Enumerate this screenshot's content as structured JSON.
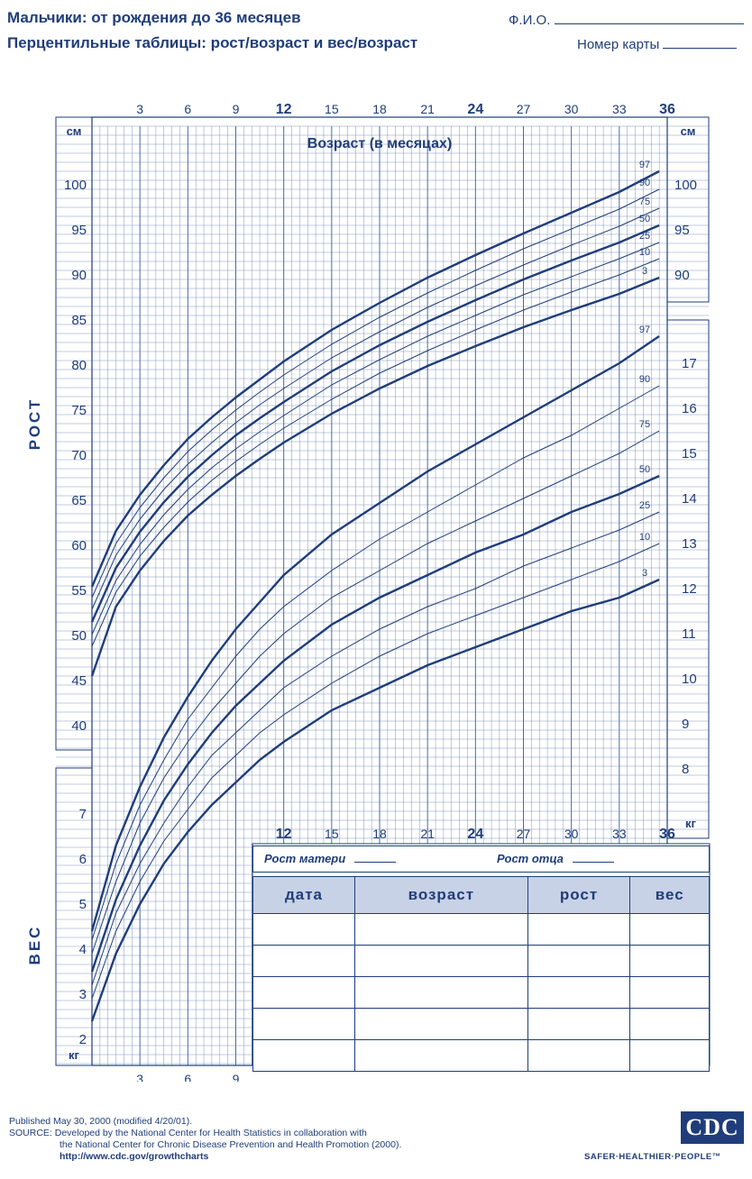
{
  "header": {
    "title_line1": "Мальчики: от рождения до 36 месяцев",
    "title_line2": "Перцентильные таблицы: рост/возраст и вес/возраст",
    "name_label": "Ф.И.О.",
    "card_label": "Номер карты"
  },
  "record_table": {
    "mother_height_label": "Рост матери",
    "father_height_label": "Рост отца",
    "columns": [
      "дата",
      "возраст",
      "рост",
      "вес"
    ],
    "row_count": 5
  },
  "footer": {
    "line1": "Published May 30, 2000 (modified 4/20/01).",
    "line2": "SOURCE: Developed by the National Center for Health Statistics in collaboration with",
    "line3": "the National Center for Chronic Disease Prevention and Health Promotion (2000).",
    "url": "http://www.cdc.gov/growthcharts",
    "logo_text": "CDC",
    "tagline": "SAFER·HEALTHIER·PEOPLE™"
  },
  "colors": {
    "ink": "#1f3d7a",
    "grid": "#4a6aa8",
    "table_head": "#c8d2e6"
  },
  "chart_data": [
    {
      "type": "line",
      "title": "Возраст (в месяцах)",
      "ylabel": "РОСТ",
      "y_unit_label": "см",
      "x_ticks_top": [
        3,
        6,
        9,
        12,
        15,
        18,
        21,
        24,
        27,
        30,
        33,
        36
      ],
      "xlim": [
        0,
        36
      ],
      "ylim": [
        40,
        104
      ],
      "y_ticks_left": [
        40,
        45,
        50,
        55,
        60,
        65,
        70,
        75,
        80,
        85,
        90,
        95,
        100
      ],
      "y_ticks_right": [
        90,
        95,
        100
      ],
      "x": [
        0,
        1.5,
        3,
        4.5,
        6,
        7.5,
        9,
        10.5,
        12,
        15,
        18,
        21,
        24,
        27,
        30,
        33,
        35.5
      ],
      "series": [
        {
          "name": "97",
          "values": [
            55.4,
            61.6,
            65.6,
            68.9,
            71.8,
            74.2,
            76.4,
            78.4,
            80.4,
            83.9,
            86.9,
            89.7,
            92.2,
            94.6,
            96.9,
            99.2,
            101.5
          ]
        },
        {
          "name": "90",
          "values": [
            54.2,
            60.2,
            64.2,
            67.5,
            70.4,
            72.8,
            75.0,
            77.0,
            78.9,
            82.3,
            85.3,
            88.0,
            90.5,
            92.9,
            95.1,
            97.3,
            99.5
          ]
        },
        {
          "name": "75",
          "values": [
            52.9,
            58.9,
            62.9,
            66.2,
            69.0,
            71.4,
            73.6,
            75.6,
            77.4,
            80.8,
            83.7,
            86.4,
            88.8,
            91.1,
            93.3,
            95.4,
            97.4
          ]
        },
        {
          "name": "50",
          "values": [
            51.5,
            57.5,
            61.5,
            64.8,
            67.6,
            70.0,
            72.2,
            74.1,
            75.9,
            79.3,
            82.2,
            84.8,
            87.2,
            89.5,
            91.6,
            93.6,
            95.5
          ]
        },
        {
          "name": "25",
          "values": [
            50.1,
            56.1,
            60.1,
            63.4,
            66.2,
            68.6,
            70.7,
            72.6,
            74.4,
            77.8,
            80.6,
            83.2,
            85.5,
            87.8,
            89.8,
            91.8,
            93.6
          ]
        },
        {
          "name": "10",
          "values": [
            48.8,
            54.8,
            58.8,
            62.0,
            64.8,
            67.2,
            69.3,
            71.2,
            73.0,
            76.2,
            79.1,
            81.6,
            83.9,
            86.1,
            88.1,
            90.0,
            91.8
          ]
        },
        {
          "name": "3",
          "values": [
            45.5,
            53.2,
            57.2,
            60.5,
            63.3,
            65.6,
            67.7,
            69.6,
            71.4,
            74.6,
            77.4,
            79.9,
            82.1,
            84.2,
            86.1,
            87.9,
            89.7
          ]
        }
      ]
    },
    {
      "type": "line",
      "ylabel": "ВЕС",
      "y_unit_label": "кг",
      "x_ticks_bottom": [
        3,
        6,
        9,
        12,
        15,
        18,
        21,
        24,
        27,
        30,
        33,
        36
      ],
      "xlim": [
        0,
        36
      ],
      "ylim": [
        1.5,
        18
      ],
      "y_ticks_left": [
        2,
        3,
        4,
        5,
        6,
        7
      ],
      "y_ticks_right": [
        8,
        9,
        10,
        11,
        12,
        13,
        14,
        15,
        16,
        17
      ],
      "x": [
        0,
        1.5,
        3,
        4.5,
        6,
        7.5,
        9,
        10.5,
        12,
        15,
        18,
        21,
        24,
        27,
        30,
        33,
        35.5
      ],
      "series": [
        {
          "name": "97",
          "values": [
            4.4,
            6.3,
            7.6,
            8.7,
            9.6,
            10.4,
            11.1,
            11.7,
            12.3,
            13.2,
            13.9,
            14.6,
            15.2,
            15.8,
            16.4,
            17.0,
            17.6
          ]
        },
        {
          "name": "90",
          "values": [
            4.2,
            5.9,
            7.2,
            8.2,
            9.1,
            9.8,
            10.5,
            11.1,
            11.6,
            12.4,
            13.1,
            13.7,
            14.3,
            14.9,
            15.4,
            16.0,
            16.5
          ]
        },
        {
          "name": "75",
          "values": [
            3.9,
            5.5,
            6.8,
            7.8,
            8.6,
            9.3,
            9.9,
            10.5,
            11.0,
            11.8,
            12.4,
            13.0,
            13.5,
            14.0,
            14.5,
            15.0,
            15.5
          ]
        },
        {
          "name": "50",
          "values": [
            3.5,
            5.1,
            6.3,
            7.3,
            8.1,
            8.8,
            9.4,
            9.9,
            10.4,
            11.2,
            11.8,
            12.3,
            12.8,
            13.2,
            13.7,
            14.1,
            14.5
          ]
        },
        {
          "name": "25",
          "values": [
            3.2,
            4.8,
            5.9,
            6.8,
            7.6,
            8.3,
            8.8,
            9.3,
            9.8,
            10.5,
            11.1,
            11.6,
            12.0,
            12.5,
            12.9,
            13.3,
            13.7
          ]
        },
        {
          "name": "10",
          "values": [
            2.9,
            4.4,
            5.5,
            6.4,
            7.1,
            7.8,
            8.3,
            8.8,
            9.2,
            9.9,
            10.5,
            11.0,
            11.4,
            11.8,
            12.2,
            12.6,
            13.0
          ]
        },
        {
          "name": "3",
          "values": [
            2.4,
            3.9,
            5.0,
            5.9,
            6.6,
            7.2,
            7.7,
            8.2,
            8.6,
            9.3,
            9.8,
            10.3,
            10.7,
            11.1,
            11.5,
            11.8,
            12.2
          ]
        }
      ]
    }
  ]
}
